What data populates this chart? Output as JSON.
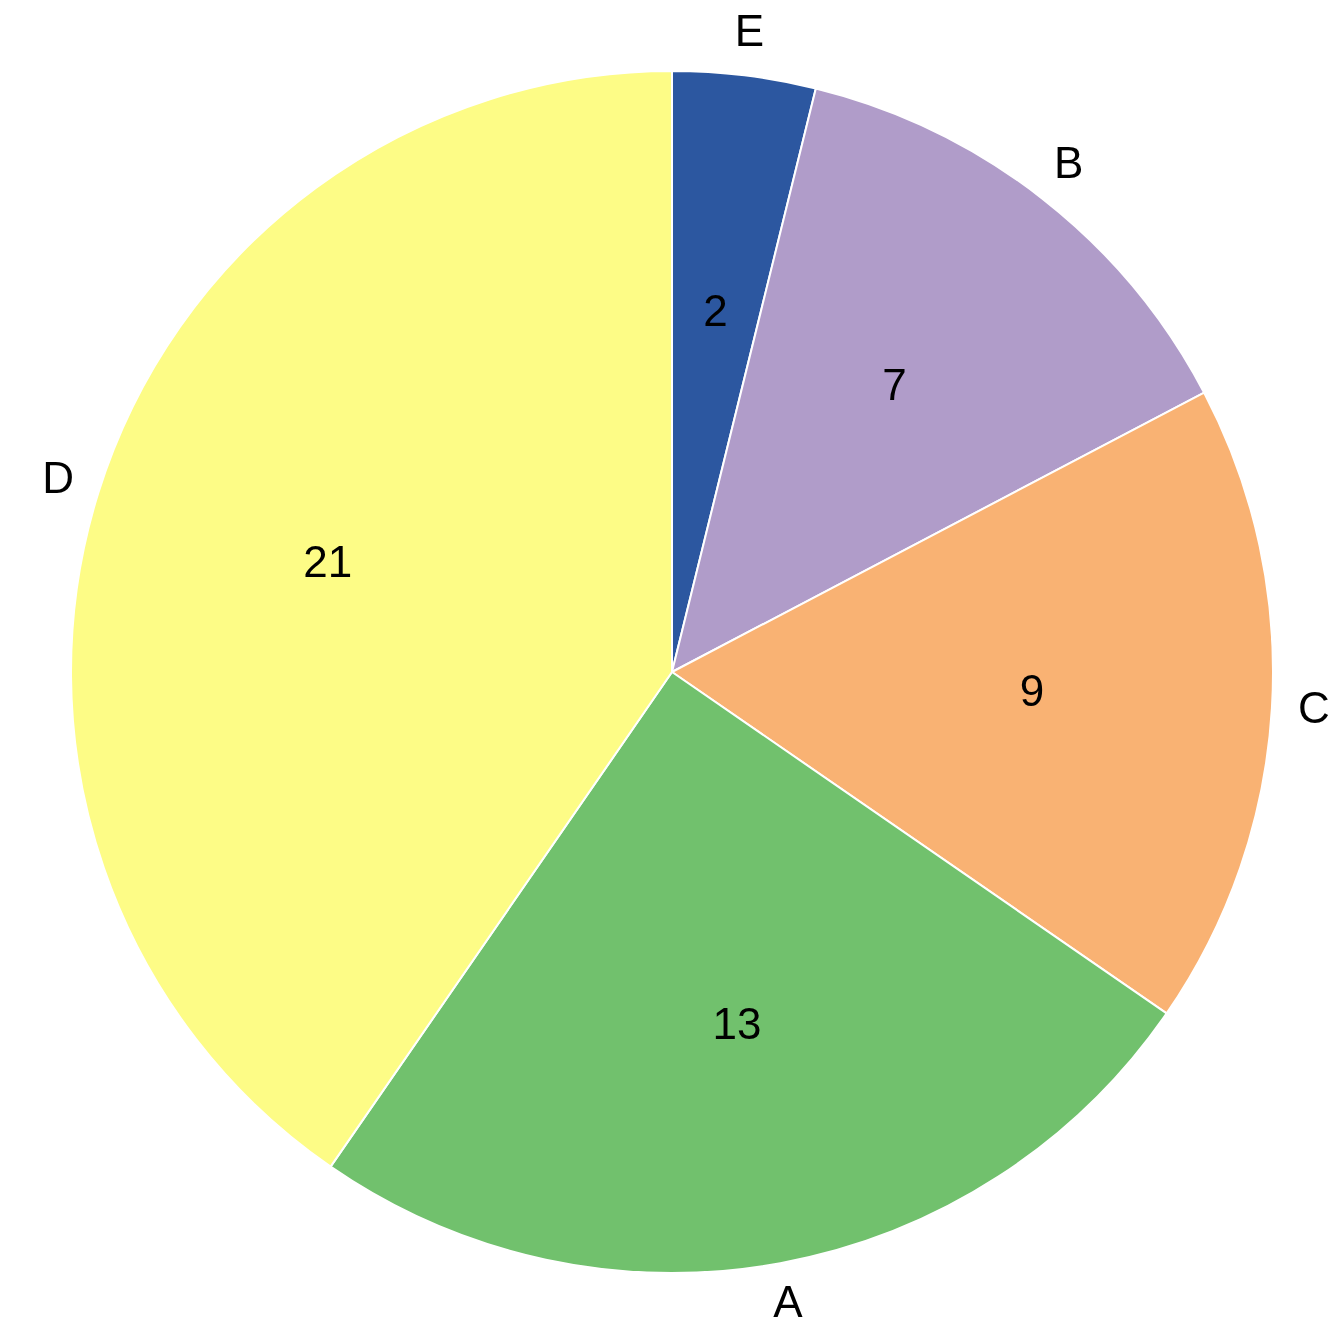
{
  "chart_data": {
    "type": "pie",
    "categories": [
      "E",
      "B",
      "C",
      "A",
      "D"
    ],
    "values": [
      2,
      7,
      9,
      13,
      21
    ],
    "colors": [
      "#2c57a0",
      "#b09cc9",
      "#f9b273",
      "#71c16d",
      "#fdfc86"
    ],
    "data_labels": true,
    "legend": false
  }
}
